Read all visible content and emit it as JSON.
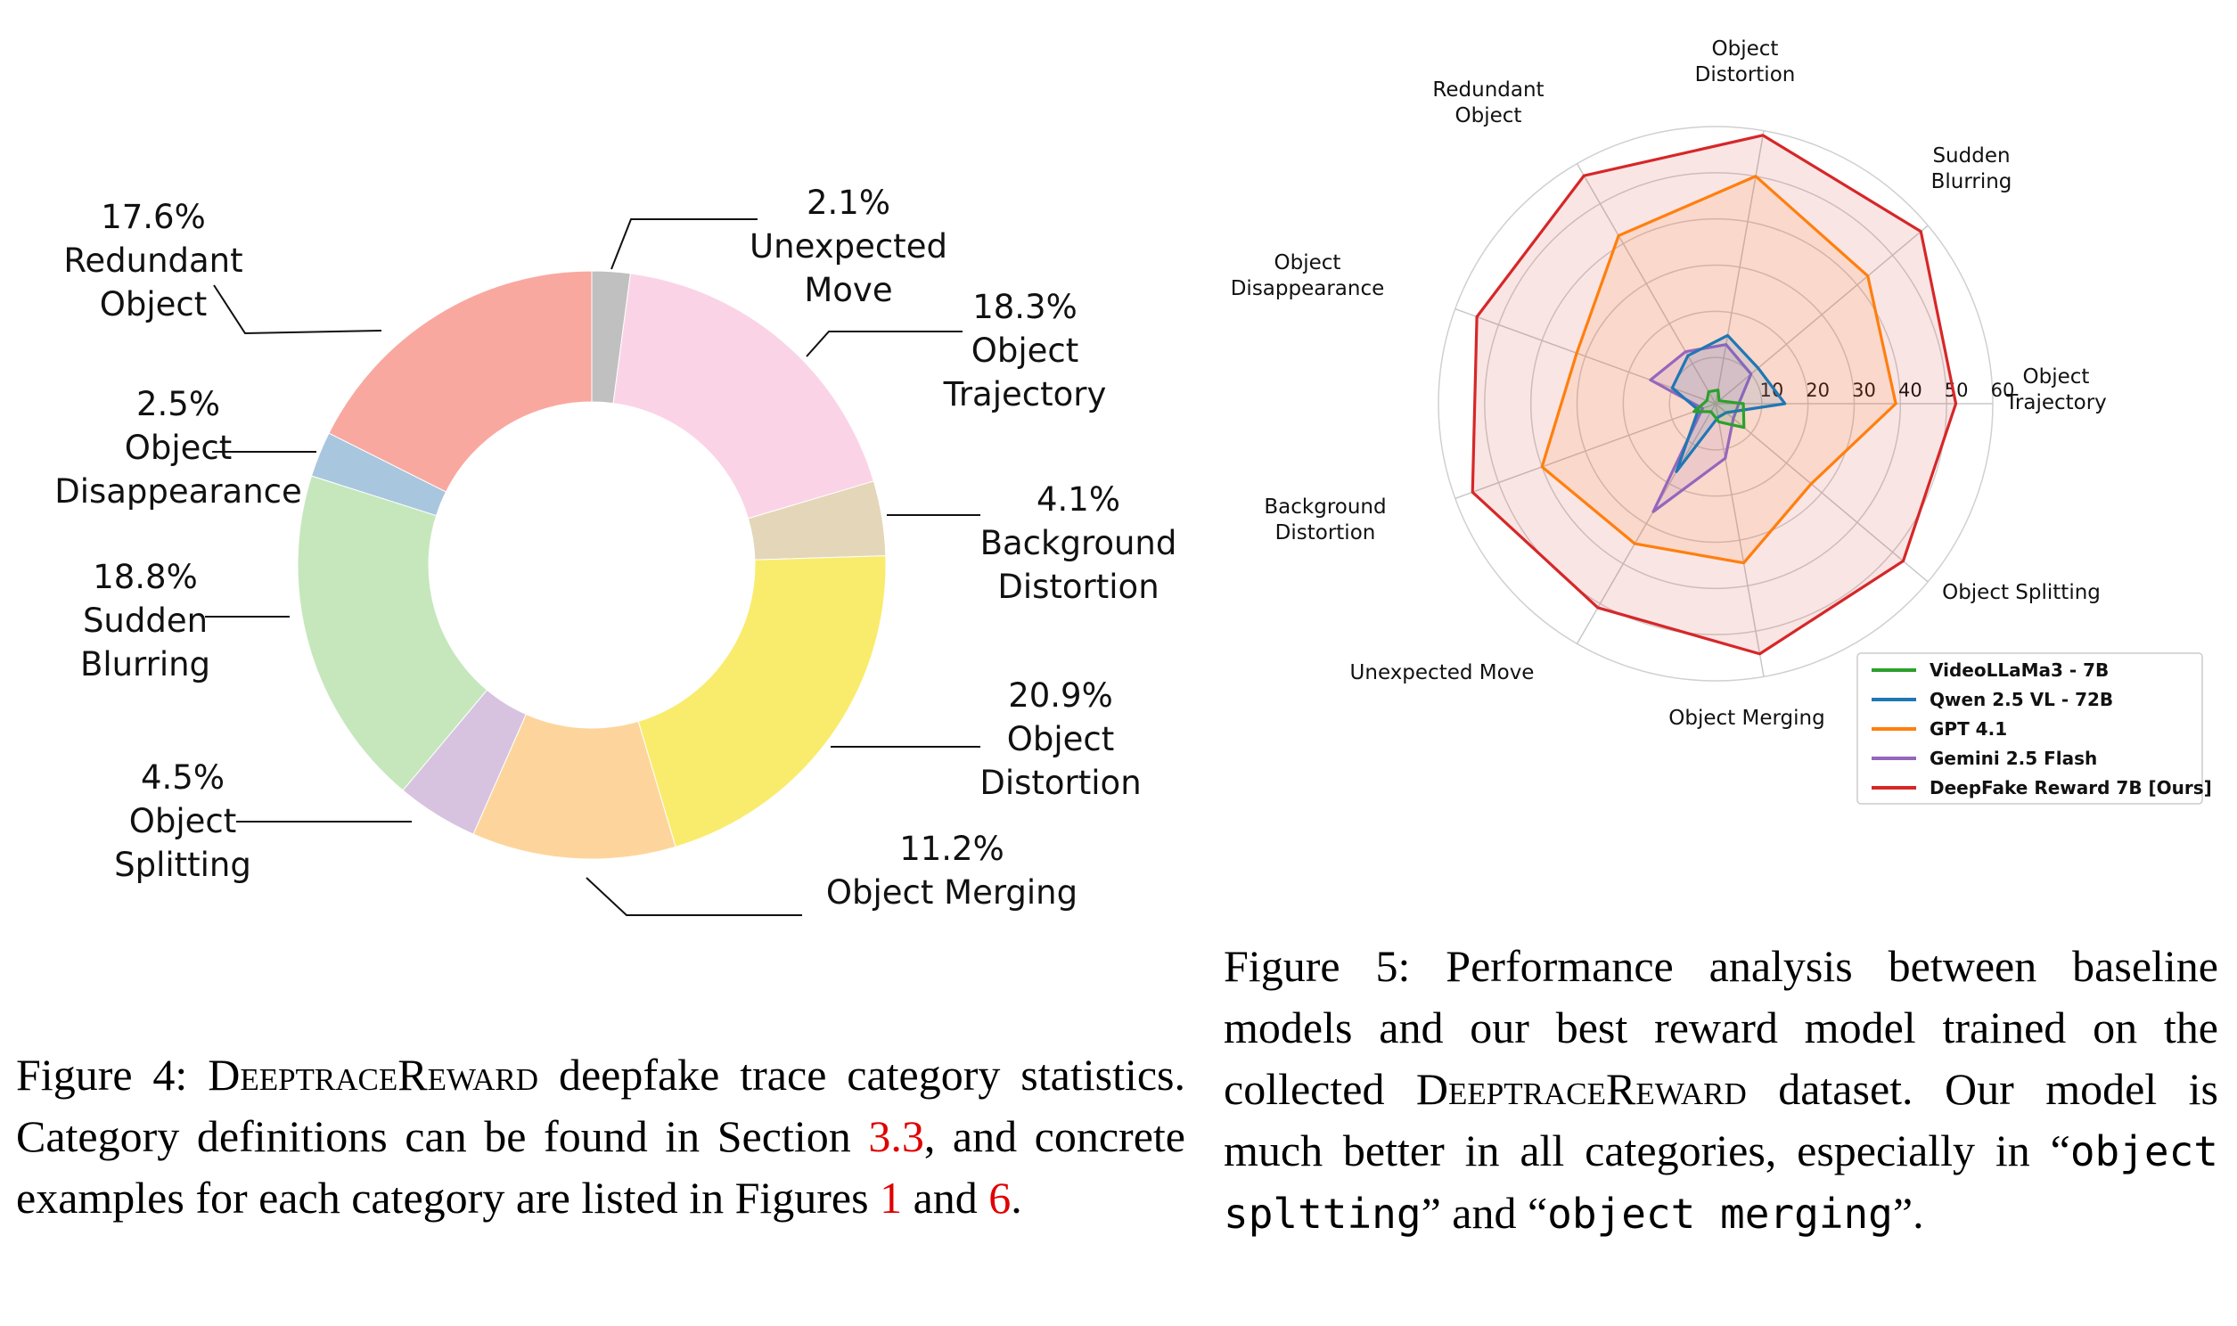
{
  "figure4": {
    "chart_data": {
      "type": "pie",
      "donut": true,
      "slices": [
        {
          "pct": 2.1,
          "value_label": "2.1%",
          "name": "Unexpected Move",
          "lines": [
            "2.1%",
            "Unexpected",
            "Move"
          ],
          "color": "#c0c0c0"
        },
        {
          "pct": 18.3,
          "value_label": "18.3%",
          "name": "Object Trajectory",
          "lines": [
            "18.3%",
            "Object",
            "Trajectory"
          ],
          "color": "#fad4e6"
        },
        {
          "pct": 4.1,
          "value_label": "4.1%",
          "name": "Background Distortion",
          "lines": [
            "4.1%",
            "Background",
            "Distortion"
          ],
          "color": "#e4d6b8"
        },
        {
          "pct": 20.9,
          "value_label": "20.9%",
          "name": "Object Distortion",
          "lines": [
            "20.9%",
            "Object",
            "Distortion"
          ],
          "color": "#f9ec6d"
        },
        {
          "pct": 11.2,
          "value_label": "11.2%",
          "name": "Object Merging",
          "lines": [
            "11.2%",
            "Object Merging"
          ],
          "color": "#fdd59c"
        },
        {
          "pct": 4.5,
          "value_label": "4.5%",
          "name": "Object Splitting",
          "lines": [
            "4.5%",
            "Object",
            "Splitting"
          ],
          "color": "#d7c3e0"
        },
        {
          "pct": 18.8,
          "value_label": "18.8%",
          "name": "Sudden Blurring",
          "lines": [
            "18.8%",
            "Sudden",
            "Blurring"
          ],
          "color": "#c6e7bc"
        },
        {
          "pct": 2.5,
          "value_label": "2.5%",
          "name": "Object Disappearance",
          "lines": [
            "2.5%",
            "Object",
            "Disappearance"
          ],
          "color": "#a9c6df"
        },
        {
          "pct": 17.6,
          "value_label": "17.6%",
          "name": "Redundant Object",
          "lines": [
            "17.6%",
            "Redundant",
            "Object"
          ],
          "color": "#f9a8a0"
        }
      ]
    },
    "caption": {
      "prefix": "Figure 4: ",
      "name": "DeeptraceReward",
      "text1": " deepfake trace category statistics. Category definitions can be found in Section ",
      "ref1": "3.3",
      "text2": ", and concrete examples for each category are listed in Figures ",
      "ref2": "1",
      "text3": " and ",
      "ref3": "6",
      "text4": "."
    }
  },
  "figure5": {
    "chart_data": {
      "type": "radar",
      "axes": [
        "Object Trajectory",
        "Sudden Blurring",
        "Object Distortion",
        "Redundant Object",
        "Object Disappearance",
        "Background Distortion",
        "Unexpected Move",
        "Object Merging",
        "Object Splitting"
      ],
      "axis_label_lines": [
        [
          "Object",
          "Trajectory"
        ],
        [
          "Sudden",
          "Blurring"
        ],
        [
          "Object",
          "Distortion"
        ],
        [
          "Redundant",
          "Object"
        ],
        [
          "Object",
          "Disappearance"
        ],
        [
          "Background",
          "Distortion"
        ],
        [
          "Unexpected Move"
        ],
        [
          "Object Merging"
        ],
        [
          "Object Splitting"
        ]
      ],
      "rmax": 60,
      "ticks": [
        10,
        20,
        30,
        40,
        50,
        60
      ],
      "tick_labels": [
        "10",
        "20",
        "30",
        "40",
        "50",
        "60"
      ],
      "series": [
        {
          "name": "VideoLLaMa3 - 7B",
          "color": "#2ca02c",
          "values": [
            6,
            1,
            3,
            3,
            2,
            5,
            2,
            4,
            8
          ]
        },
        {
          "name": "Qwen 2.5 VL - 72B",
          "color": "#1f77b4",
          "values": [
            15,
            12,
            15,
            12,
            10,
            4,
            17,
            3,
            3
          ]
        },
        {
          "name": "GPT 4.1",
          "color": "#ff7f0e",
          "values": [
            39,
            43,
            50,
            42,
            32,
            40,
            35,
            35,
            27
          ]
        },
        {
          "name": "Gemini 2.5 Flash",
          "color": "#9467bd",
          "values": [
            5,
            10,
            13,
            13,
            15,
            3,
            27,
            12,
            5
          ]
        },
        {
          "name": "DeepFake Reward 7B [Ours]",
          "color": "#d62728",
          "values": [
            52,
            58,
            59,
            57,
            55,
            56,
            51,
            55,
            53
          ]
        }
      ],
      "legend_position": "bottom-right",
      "grid": true
    },
    "caption": {
      "text1": "Figure 5:  Performance analysis between baseline models and our best reward model trained on the collected ",
      "name": "DeeptraceReward",
      "text2": " dataset. Our model is much better in all categories, especially in “",
      "mono1": "object spltting",
      "text3": "” and “",
      "mono2": "object merging",
      "text4": "”."
    }
  }
}
